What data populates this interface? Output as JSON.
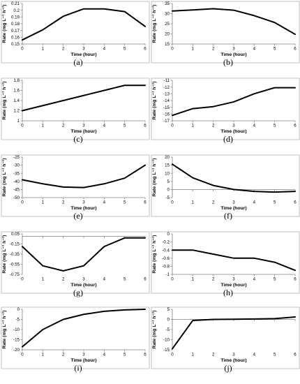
{
  "chart_data": [
    {
      "type": "line",
      "label": "(a)",
      "xlabel": "Time (hour)",
      "ylabel": "Rate (mg L⁻¹ h⁻¹)",
      "x": [
        0,
        1,
        2,
        3,
        4,
        5,
        6
      ],
      "values": [
        0.156,
        0.171,
        0.191,
        0.202,
        0.202,
        0.198,
        0.176
      ],
      "xlim": [
        0,
        6
      ],
      "ylim": [
        0.15,
        0.21
      ],
      "yticks": [
        0.15,
        0.16,
        0.17,
        0.18,
        0.19,
        0.2,
        0.21
      ],
      "yticklabels": [
        "0.15",
        "0.16",
        "0.17",
        "0.18",
        "0.19",
        "0.2",
        "0.21"
      ]
    },
    {
      "type": "line",
      "label": "(b)",
      "xlabel": "Time (hour)",
      "ylabel": "Rate (mg L⁻¹ h⁻¹)",
      "x": [
        0,
        1,
        2,
        3,
        4,
        5,
        6
      ],
      "values": [
        31.3,
        31.8,
        32.4,
        31.7,
        29.0,
        25.6,
        19.8
      ],
      "xlim": [
        0,
        6
      ],
      "ylim": [
        15,
        35
      ],
      "yticks": [
        15,
        20,
        25,
        30,
        35
      ],
      "yticklabels": [
        "15",
        "20",
        "25",
        "30",
        "35"
      ]
    },
    {
      "type": "line",
      "label": "(c)",
      "xlabel": "Time (hour)",
      "ylabel": "Rate (mg L⁻¹ h⁻¹)",
      "x": [
        0,
        1,
        2,
        3,
        4,
        5,
        6
      ],
      "values": [
        1.2,
        1.3,
        1.4,
        1.5,
        1.6,
        1.7,
        1.7
      ],
      "xlim": [
        0,
        6
      ],
      "ylim": [
        1,
        1.8
      ],
      "yticks": [
        1,
        1.2,
        1.4,
        1.6,
        1.8
      ],
      "yticklabels": [
        "1",
        "1.2",
        "1.4",
        "1.6",
        "1.8"
      ]
    },
    {
      "type": "line",
      "label": "(d)",
      "xlabel": "Time (hour)",
      "ylabel": "Rate (mg L⁻¹ h⁻¹)",
      "x": [
        0,
        1,
        2,
        3,
        4,
        5,
        6
      ],
      "values": [
        -16.2,
        -15.2,
        -14.9,
        -14.2,
        -13.0,
        -12.1,
        -12.1
      ],
      "xlim": [
        0,
        6
      ],
      "ylim": [
        -17,
        -11
      ],
      "yticks": [
        -17,
        -16,
        -15,
        -14,
        -13,
        -12,
        -11
      ],
      "yticklabels": [
        "-17",
        "-16",
        "-15",
        "-14",
        "-13",
        "-12",
        "-11"
      ]
    },
    {
      "type": "line",
      "label": "(e)",
      "xlabel": "Time (hour)",
      "ylabel": "Rate (mg L⁻¹ h⁻¹)",
      "x": [
        0,
        1,
        2,
        3,
        4,
        5,
        6
      ],
      "values": [
        -39,
        -41.5,
        -43.5,
        -43.8,
        -41.5,
        -38,
        -30
      ],
      "xlim": [
        0,
        6
      ],
      "ylim": [
        -50,
        -25
      ],
      "yticks": [
        -50,
        -45,
        -40,
        -35,
        -30,
        -25
      ],
      "yticklabels": [
        "-50",
        "-45",
        "-40",
        "-35",
        "-30",
        "-25"
      ]
    },
    {
      "type": "line",
      "label": "(f)",
      "xlabel": "Time (hour)",
      "ylabel": "Rate (mg L⁻¹ h⁻¹)",
      "x": [
        0,
        1,
        2,
        3,
        4,
        5,
        6
      ],
      "values": [
        15.6,
        7.2,
        2.5,
        0,
        -1.2,
        -1.6,
        -1.2
      ],
      "xlim": [
        0,
        6
      ],
      "ylim": [
        -5,
        20
      ],
      "yticks": [
        -5,
        0,
        5,
        10,
        15,
        20
      ],
      "yticklabels": [
        "-5",
        "0",
        "5",
        "10",
        "15",
        "20"
      ]
    },
    {
      "type": "line",
      "label": "(g)",
      "xlabel": "Time (hour)",
      "ylabel": "Rate (mg L⁻¹ h⁻¹)",
      "x": [
        0,
        1,
        2,
        3,
        4,
        5,
        6
      ],
      "values": [
        -0.2,
        -0.58,
        -0.68,
        -0.58,
        -0.2,
        -0.03,
        -0.03
      ],
      "xlim": [
        0,
        6
      ],
      "ylim": [
        -0.75,
        0.05
      ],
      "yticks": [
        -0.75,
        -0.55,
        -0.35,
        -0.15,
        0.05
      ],
      "yticklabels": [
        "-0.75",
        "-0.55",
        "-0.35",
        "-0.15",
        "0.05"
      ]
    },
    {
      "type": "line",
      "label": "(h)",
      "xlabel": "Time (hour)",
      "ylabel": "Rate (mg L⁻¹ h⁻¹)",
      "x": [
        0,
        1,
        2,
        3,
        4,
        5,
        6
      ],
      "values": [
        -0.4,
        -0.4,
        -0.5,
        -0.6,
        -0.6,
        -0.7,
        -0.9
      ],
      "xlim": [
        0,
        6
      ],
      "ylim": [
        -1,
        0
      ],
      "yticks": [
        -1,
        -0.8,
        -0.6,
        -0.4,
        -0.2,
        0
      ],
      "yticklabels": [
        "-1",
        "-0.8",
        "-0.6",
        "-0.4",
        "-0.2",
        "0"
      ]
    },
    {
      "type": "line",
      "label": "(i)",
      "xlabel": "Time (hour)",
      "ylabel": "Rate (mg L⁻¹ h⁻¹)",
      "x": [
        0,
        1,
        2,
        3,
        4,
        5,
        6
      ],
      "values": [
        -18.5,
        -10,
        -5,
        -2.5,
        -1,
        -0.3,
        0
      ],
      "xlim": [
        0,
        6
      ],
      "ylim": [
        -20,
        0
      ],
      "yticks": [
        -20,
        -15,
        -10,
        -5,
        0
      ],
      "yticklabels": [
        "-20",
        "-15",
        "-10",
        "-5",
        "0"
      ]
    },
    {
      "type": "line",
      "label": "(j)",
      "xlabel": "Time (hour)",
      "ylabel": "Rate (mg L⁻¹ h⁻¹)",
      "x": [
        0,
        1,
        2,
        3,
        4,
        5,
        6
      ],
      "values": [
        -14.5,
        -0.5,
        0,
        0.1,
        0.2,
        0.4,
        1.2
      ],
      "xlim": [
        0,
        6
      ],
      "ylim": [
        -15,
        5
      ],
      "yticks": [
        -15,
        -10,
        -5,
        0,
        5
      ],
      "yticklabels": [
        "-15",
        "-10",
        "-5",
        "0",
        "5"
      ]
    }
  ]
}
